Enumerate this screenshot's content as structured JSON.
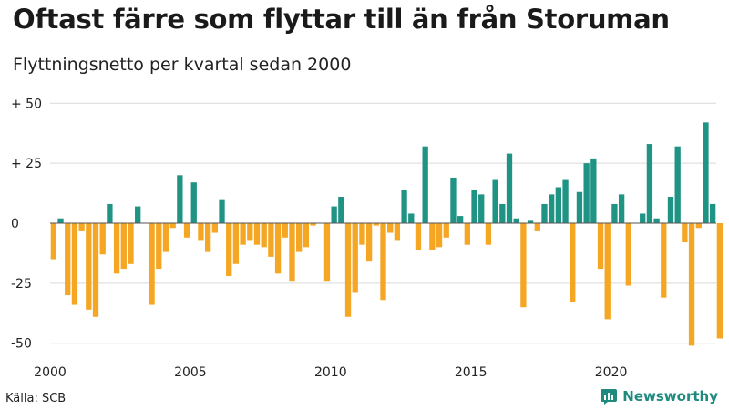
{
  "title": "Oftast färre som flyttar till än från Storuman",
  "subtitle": "Flyttningsnetto per kvartal sedan 2000",
  "source": "Källa: SCB",
  "brand": "Newsworthy",
  "colors": {
    "positive": "#1f9384",
    "negative": "#f5a623",
    "grid": "#d9d9d9",
    "brand": "#1f8a7e"
  },
  "chart_data": {
    "type": "bar",
    "title": "Oftast färre som flyttar till än från Storuman",
    "subtitle": "Flyttningsnetto per kvartal sedan 2000",
    "xlabel": "",
    "ylabel": "",
    "x_start": 2000,
    "periods_per_year": 4,
    "xlim": [
      2000,
      2023.75
    ],
    "ylim": [
      -52,
      52
    ],
    "y_ticks": [
      50,
      25,
      0,
      -25,
      -50
    ],
    "y_tick_labels": [
      "+ 50",
      "+ 25",
      "0",
      "-25",
      "-50"
    ],
    "x_ticks": [
      2000,
      2005,
      2010,
      2015,
      2020
    ],
    "x_tick_labels": [
      "2000",
      "2005",
      "2010",
      "2015",
      "2020"
    ],
    "grid": true,
    "values": [
      -15,
      2,
      -30,
      -34,
      -3,
      -36,
      -39,
      -13,
      8,
      -21,
      -19,
      -17,
      7,
      0,
      -34,
      -19,
      -12,
      -2,
      20,
      -6,
      17,
      -7,
      -12,
      -4,
      10,
      -22,
      -17,
      -9,
      -7,
      -9,
      -10,
      -14,
      -21,
      -6,
      -24,
      -12,
      -10,
      -1,
      0,
      -24,
      7,
      11,
      -39,
      -29,
      -9,
      -16,
      -1,
      -32,
      -4,
      -7,
      14,
      4,
      -11,
      32,
      -11,
      -10,
      -6,
      19,
      3,
      -9,
      14,
      12,
      -9,
      18,
      8,
      29,
      2,
      -35,
      1,
      -3,
      8,
      12,
      15,
      18,
      -33,
      13,
      25,
      27,
      -19,
      -40,
      8,
      12,
      -26,
      0,
      4,
      33,
      2,
      -31,
      11,
      32,
      -8,
      -51,
      -2,
      42,
      8,
      -48
    ]
  }
}
